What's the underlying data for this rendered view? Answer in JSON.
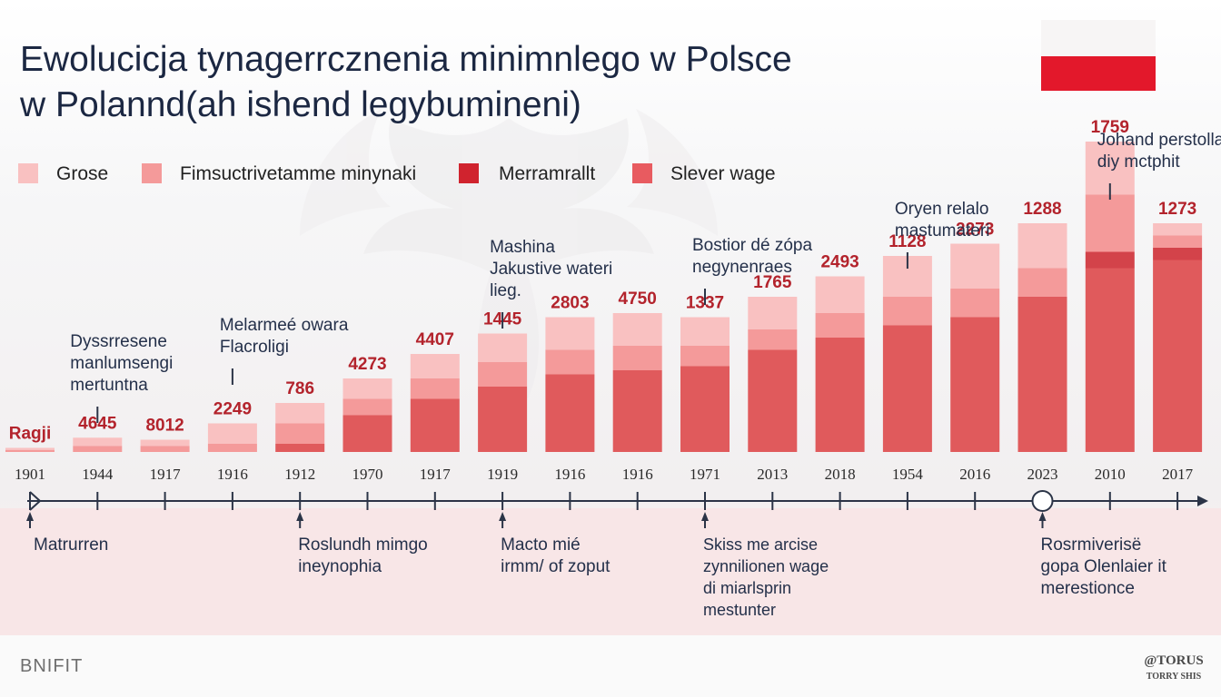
{
  "title": {
    "line1": "Ewolucicja tynagerrcznenia minimnlego w Polsce",
    "line2": "w Polannd(ah ishend legybumineni)"
  },
  "colors": {
    "light": "#f9c1c1",
    "mid": "#f49a9a",
    "medium": "#ee7676",
    "dark": "#e05a5c",
    "deep": "#d3434a",
    "value_text": "#b3232c",
    "flag_white": "#f7f5f5",
    "flag_red": "#e3182b"
  },
  "legend": [
    {
      "label": "Grose",
      "color": "#f9c1c1"
    },
    {
      "label": "Fimsuctrivetamme minynaki",
      "color": "#f49a9a"
    },
    {
      "label": "Merramrallt",
      "color": "#d0232e"
    },
    {
      "label": "Slever wage",
      "color": "#e85b60"
    }
  ],
  "chart_data": {
    "type": "bar",
    "title": "Ewolucicja tynagerrcznenia minimnlego w Polsce",
    "subtitle": "w Polannd(ah ishend legybumineni)",
    "categories": [
      "1901",
      "1944",
      "1917",
      "1916",
      "1912",
      "1970",
      "1917",
      "1919",
      "1916",
      "1916",
      "1971",
      "2013",
      "2018",
      "1954",
      "2016",
      "2023",
      "2010",
      "2017"
    ],
    "value_labels": [
      "Ragji",
      "4645",
      "8012",
      "2249",
      "786",
      "4273",
      "4407",
      "1445",
      "2803",
      "4750",
      "1337",
      "1765",
      "2493",
      "1128",
      "2273",
      "1288",
      "1759",
      "1273"
    ],
    "series": [
      {
        "name": "Grose",
        "values": [
          0.5,
          2,
          1.5,
          5,
          5,
          5,
          6,
          7,
          8,
          8,
          7,
          8,
          9,
          10,
          11,
          11,
          13,
          3
        ]
      },
      {
        "name": "Fimsuctrivetamme minynaki",
        "values": [
          0.5,
          1.5,
          1.5,
          2,
          5,
          4,
          5,
          6,
          6,
          6,
          5,
          5,
          6,
          7,
          7,
          7,
          14,
          3
        ]
      },
      {
        "name": "Merramrallt",
        "values": [
          0,
          0,
          0,
          0,
          0,
          0,
          0,
          0,
          0,
          0,
          0,
          0,
          0,
          0,
          0,
          0,
          4,
          3
        ]
      },
      {
        "name": "Slever wage",
        "values": [
          0,
          0,
          0,
          0,
          2,
          9,
          13,
          16,
          19,
          20,
          21,
          25,
          28,
          31,
          33,
          38,
          45,
          47
        ]
      }
    ],
    "ylim": [
      0,
      60
    ],
    "grid": false,
    "legend_position": "top-left",
    "annotations": [
      {
        "text": [
          "Dyssrresene",
          "manlumsengi",
          "mertuntna"
        ],
        "category_index": 1,
        "side": "above"
      },
      {
        "text": [
          "Melarmeé owara",
          "Flacroligi"
        ],
        "category_index": 3,
        "side": "above"
      },
      {
        "text": [
          "Mashina",
          "Jakustive wateri",
          "lieg."
        ],
        "category_index": 7,
        "side": "above"
      },
      {
        "text": [
          "Bostior dé zópa",
          "negynenraes"
        ],
        "category_index": 10,
        "side": "above"
      },
      {
        "text": [
          "Oryen relalo",
          "mastumateri"
        ],
        "category_index": 13,
        "side": "above"
      },
      {
        "text": [
          "Johand perstolla",
          "diy mctphit"
        ],
        "category_index": 16,
        "side": "above"
      },
      {
        "text": [
          "Matrurren"
        ],
        "category_index": 0,
        "side": "below"
      },
      {
        "text": [
          "Roslundh mimgo",
          "ineynophia"
        ],
        "category_index": 4,
        "side": "below"
      },
      {
        "text": [
          "Macto mié",
          "irmm/ of zoput"
        ],
        "category_index": 7,
        "side": "below"
      },
      {
        "text": [
          "Skiss me arcise",
          "zynnilionen wage",
          "di miarlsprin",
          "mestunter"
        ],
        "category_index": 10,
        "side": "below"
      },
      {
        "text": [
          "Rosrmiverisë",
          "gopa Olenlaier it",
          "merestionce"
        ],
        "category_index": 15,
        "side": "below"
      }
    ]
  },
  "footer": {
    "left": "BNIFIT",
    "right_line1": "@TORUS",
    "right_line2": "TORRY SHIS"
  }
}
